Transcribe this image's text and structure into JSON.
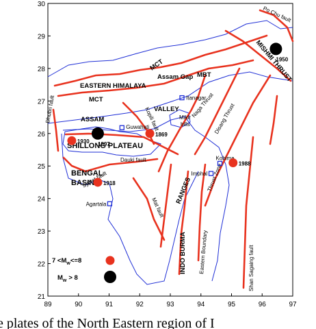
{
  "axes": {
    "xlim": [
      89,
      97
    ],
    "xticks": [
      89,
      90,
      91,
      92,
      93,
      94,
      95,
      96,
      97
    ],
    "ylim": [
      21,
      30
    ],
    "yticks": [
      21,
      22,
      23,
      24,
      25,
      26,
      27,
      28,
      29,
      30
    ]
  },
  "events": [
    {
      "year": "1897",
      "lon": 90.63,
      "lat": 26.0,
      "class": "Mw > 8"
    },
    {
      "year": "1930",
      "lon": 89.78,
      "lat": 25.78,
      "class": "7 < Mw <= 8"
    },
    {
      "year": "1869",
      "lon": 92.33,
      "lat": 26.0,
      "class": "7 < Mw <= 8"
    },
    {
      "year": "1918",
      "lon": 90.63,
      "lat": 24.5,
      "class": "7 < Mw <= 8"
    },
    {
      "year": "1988",
      "lon": 95.05,
      "lat": 25.1,
      "class": "7 < Mw <= 8"
    },
    {
      "year": "1950",
      "lon": 96.45,
      "lat": 28.6,
      "class": "Mw > 8"
    }
  ],
  "towns": [
    {
      "name": "Itanagar",
      "lon": 93.38,
      "lat": 27.1
    },
    {
      "name": "Guwahati",
      "lon": 91.42,
      "lat": 26.18
    },
    {
      "name": "Kohima",
      "lon": 94.62,
      "lat": 25.08
    },
    {
      "name": "Imphal",
      "lon": 94.33,
      "lat": 24.77
    },
    {
      "name": "Agartala",
      "lon": 91.02,
      "lat": 23.84
    }
  ],
  "labels": [
    "EASTERN HIMALAYA",
    "Assam Gap",
    "MBT",
    "MCT",
    "MCT",
    "MISHMI THRUST",
    "Po Chu fault",
    "ASSAM",
    "VALLEY",
    "Kopili fault",
    "Mikir",
    "hills",
    "Naga Thrust",
    "Disang Thrust",
    "SHILLONG PLATEAU",
    "Dauki fault",
    "Dhubri fault",
    "BENGAL",
    "BASIN",
    "Sylhet fault",
    "RANGES",
    "Thrust Zone",
    "INDO BURMA",
    "Eastern Boundary",
    "Mat fault",
    "Shan Sagaing fault"
  ],
  "legend": [
    {
      "pre": "7 <M",
      "sub": "w",
      "post": "<=8"
    },
    {
      "pre": "M",
      "sub": "w",
      "post": "> 8"
    }
  ],
  "caption": "e plates of the North Eastern region of I"
}
